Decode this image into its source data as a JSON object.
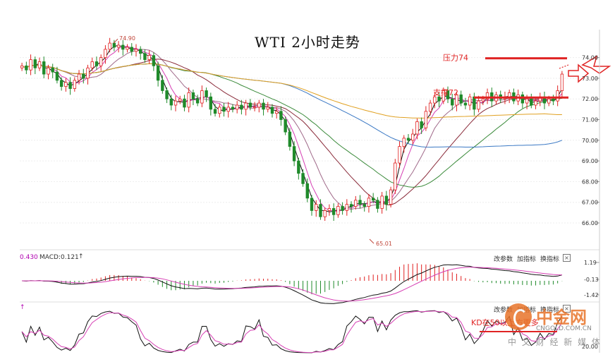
{
  "chart_data": [
    {
      "type": "candlestick",
      "title": "WTI 2小时走势",
      "y_axis_ticks": [
        "74.00",
        "73.00",
        "72.00",
        "71.00",
        "70.00",
        "69.00",
        "68.00",
        "67.00",
        "66.00"
      ],
      "ylim": [
        65.0,
        74.9
      ],
      "close_series": [
        73.6,
        73.4,
        73.9,
        73.5,
        73.8,
        73.2,
        73.5,
        73.3,
        72.9,
        72.6,
        72.8,
        72.5,
        72.9,
        73.2,
        73.0,
        73.5,
        73.8,
        73.6,
        74.0,
        74.4,
        74.7,
        74.5,
        74.6,
        74.4,
        74.5,
        74.3,
        74.4,
        74.2,
        73.9,
        74.1,
        73.6,
        72.9,
        72.4,
        72.0,
        71.7,
        71.9,
        72.0,
        71.6,
        72.3,
        72.0,
        71.8,
        72.4,
        72.1,
        71.5,
        71.3,
        71.6,
        71.4,
        71.6,
        71.5,
        71.7,
        71.5,
        71.8,
        71.6,
        71.6,
        71.8,
        71.5,
        71.6,
        71.3,
        71.4,
        71.0,
        70.4,
        69.7,
        69.0,
        68.4,
        67.9,
        67.2,
        66.6,
        66.9,
        66.3,
        66.6,
        66.7,
        66.4,
        66.8,
        66.6,
        66.9,
        66.8,
        67.1,
        66.9,
        66.8,
        67.2,
        67.1,
        66.7,
        67.3,
        66.9,
        67.6,
        68.9,
        69.7,
        70.1,
        70.0,
        70.3,
        70.9,
        70.6,
        71.4,
        71.8,
        72.1,
        71.9,
        72.4,
        72.0,
        71.7,
        72.2,
        71.8,
        71.7,
        72.1,
        71.5,
        71.9,
        72.0,
        72.3,
        71.9,
        72.2,
        72.0,
        72.1,
        72.3,
        71.9,
        72.2,
        71.8,
        72.0,
        71.7,
        71.9,
        72.1,
        71.8,
        72.0,
        71.9,
        72.4,
        73.2
      ],
      "annotations": [
        {
          "text": "74.90"
        },
        {
          "text": "65.01"
        },
        {
          "text": "压力74",
          "level": 74.0
        },
        {
          "text": "支撑72",
          "level": 72.0
        }
      ],
      "moving_averages": [
        {
          "color": "#111111"
        },
        {
          "color": "#d63fb4"
        },
        {
          "color": "#a06a8a"
        },
        {
          "color": "#8a2b3a"
        },
        {
          "color": "#3a8a3a"
        },
        {
          "color": "#3a78c4"
        },
        {
          "color": "#e0a020"
        }
      ],
      "colors": {
        "up": "#e02020",
        "down": "#1f8a2a",
        "resistance": "#e02424",
        "support": "#e02424",
        "arrow": "#e02424"
      }
    },
    {
      "type": "macd",
      "header_value": "0.430",
      "header_macd": "MACD:0.121",
      "y_axis_ticks": [
        "1.19",
        "-0.13",
        "-1.42"
      ],
      "ylim": [
        -1.42,
        1.19
      ]
    },
    {
      "type": "kd",
      "y_axis_ticks": [
        "20.00"
      ],
      "annotation": "KD在50以上方更多"
    }
  ],
  "panel_buttons": {
    "params": "改参数",
    "add": "加指标",
    "switch": "换指标",
    "close": "×"
  },
  "watermark": {
    "brand": "中金网",
    "site": "CNGOLD.COM.CN",
    "tagline": "中 文 财 经 新 媒 体"
  }
}
